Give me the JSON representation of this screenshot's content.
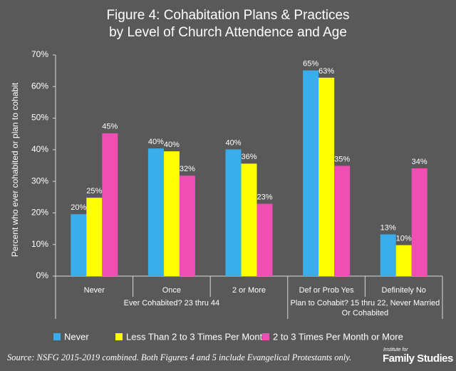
{
  "chart_data": {
    "type": "bar",
    "title": [
      "Figure 4: Cohabitation Plans & Practices",
      "by Level of Church Attendence and Age"
    ],
    "y_label": "Percent  who  ever cohabited or plan to cohabit",
    "groups": [
      {
        "label": [
          "Ever Cohabited? 23 thru 44"
        ],
        "categories": [
          "Never",
          "Once",
          "2 or More"
        ]
      },
      {
        "label": [
          "Plan to Cohabit? 15 thru 22, Never Married",
          "Or Cohabited"
        ],
        "categories": [
          "Def or Prob Yes",
          "Definitely No"
        ]
      }
    ],
    "series": [
      {
        "name": "Never",
        "color": "#3aaeea",
        "values": [
          19.6,
          40.4,
          40.1,
          65.1,
          13.2
        ],
        "value_labels": [
          "20%",
          "40%",
          "40%",
          "65%",
          "13%"
        ]
      },
      {
        "name": "Less Than 2 to 3 Times Per Month",
        "color": "#ffff00",
        "values": [
          24.8,
          39.5,
          35.6,
          62.8,
          9.8
        ],
        "value_labels": [
          "25%",
          "40%",
          "36%",
          "63%",
          "10%"
        ]
      },
      {
        "name": "2 to 3 Times Per Month or More",
        "color": "#f04eb3",
        "values": [
          45.2,
          31.8,
          22.9,
          34.9,
          34.1
        ],
        "value_labels": [
          "45%",
          "32%",
          "23%",
          "35%",
          "34%"
        ]
      }
    ],
    "ylim": [
      0,
      70
    ],
    "yticks": [
      {
        "value": 0,
        "label": "0%"
      },
      {
        "value": 10,
        "label": "10%"
      },
      {
        "value": 20,
        "label": "20%"
      },
      {
        "value": 30,
        "label": "30%"
      },
      {
        "value": 40,
        "label": "40%"
      },
      {
        "value": 50,
        "label": "50%"
      },
      {
        "value": 60,
        "label": "60%"
      },
      {
        "value": 70,
        "label": "70%"
      }
    ],
    "source": "Source: NSFG 2015-2019 combined. Both Figures 4 and 5 include Evangelical Protestants only.",
    "logo": [
      "Institute for",
      "Family Studies"
    ]
  }
}
